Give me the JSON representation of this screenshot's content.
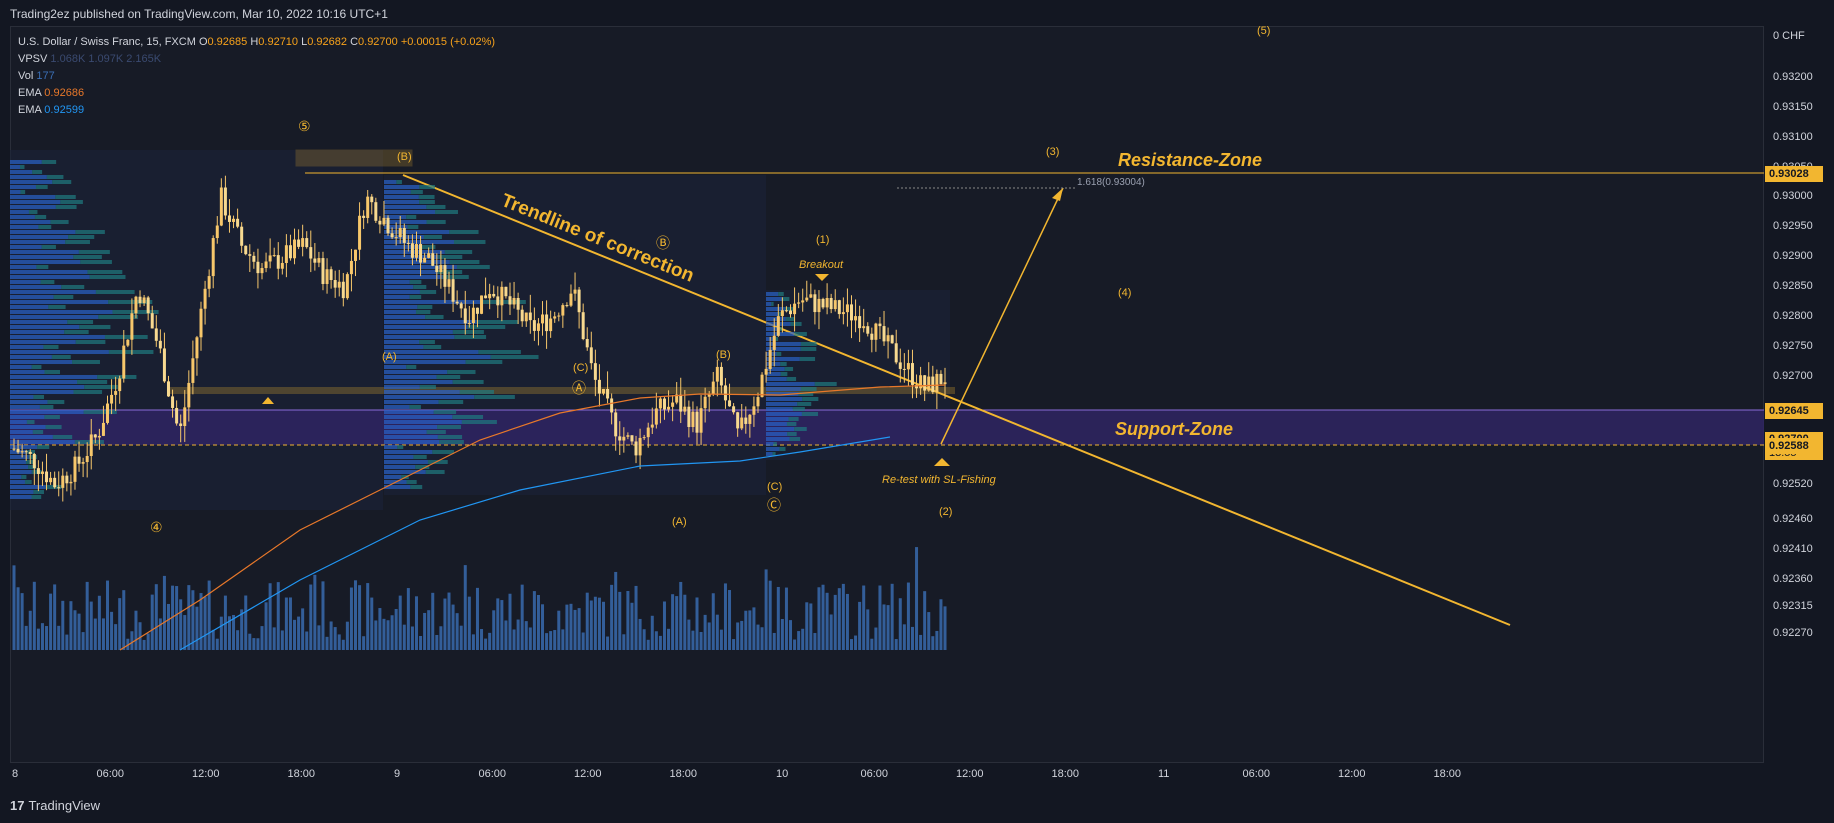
{
  "header": {
    "published": "Trading2ez published on TradingView.com, Mar 10, 2022 10:16 UTC+1"
  },
  "legend": {
    "symbol": "U.S. Dollar / Swiss Franc, 15, FXCM",
    "o_label": "O",
    "o_value": "0.92685",
    "h_label": "H",
    "h_value": "0.92710",
    "l_label": "L",
    "l_value": "0.92682",
    "c_label": "C",
    "c_value": "0.92700",
    "change": "+0.00015 (+0.02%)",
    "vpsv_label": "VPSV",
    "vpsv_values": "1.068K  1.097K  2.165K",
    "vol_label": "Vol",
    "vol_value": "177",
    "ema1_label": "EMA",
    "ema1_value": "0.92686",
    "ema2_label": "EMA",
    "ema2_value": "0.92599"
  },
  "colors": {
    "background": "#131722",
    "candle": "#f7c76b",
    "trendline": "#f2b630",
    "ema1": "#e8782a",
    "ema2": "#2196f3",
    "volume": "#3b6fb6",
    "support_zone": "#3b2d6e",
    "profile_blue": "#2962c9",
    "profile_teal": "#1f7a80"
  },
  "chart_data": {
    "type": "candlestick",
    "title": "U.S. Dollar / Swiss Franc, 15, FXCM",
    "currency": "CHF",
    "y_axis_top_label": "0 CHF",
    "ylim": [
      0.9225,
      0.9328
    ],
    "y_ticks": [
      "0.93200",
      "0.93150",
      "0.93100",
      "0.93050",
      "0.93000",
      "0.92950",
      "0.92900",
      "0.92850",
      "0.92800",
      "0.92750",
      "0.92700",
      "0.92645",
      "0.92588",
      "0.92520",
      "0.92460",
      "0.92410",
      "0.92360",
      "0.92315",
      "0.92270"
    ],
    "x_ticks": [
      "8",
      "06:00",
      "12:00",
      "18:00",
      "9",
      "06:00",
      "12:00",
      "18:00",
      "10",
      "06:00",
      "12:00",
      "18:00",
      "11",
      "06:00",
      "12:00",
      "18:00"
    ],
    "price_labels": {
      "resistance": "0.93028",
      "current": "0.92700",
      "current_timer": "13:55",
      "support_top": "0.92645",
      "support_bottom": "0.92588"
    },
    "series": [
      {
        "name": "EMA",
        "value": "0.92686"
      },
      {
        "name": "EMA",
        "value": "0.92599"
      }
    ],
    "close_path": [
      [
        0,
        0.9258
      ],
      [
        1,
        0.9256
      ],
      [
        2,
        0.9252
      ],
      [
        3,
        0.9255
      ],
      [
        4,
        0.926
      ],
      [
        5,
        0.927
      ],
      [
        6,
        0.9285
      ],
      [
        7,
        0.9275
      ],
      [
        8,
        0.926
      ],
      [
        9,
        0.928
      ],
      [
        10,
        0.93
      ],
      [
        11,
        0.9292
      ],
      [
        12,
        0.9288
      ],
      [
        13,
        0.929
      ],
      [
        14,
        0.9292
      ],
      [
        15,
        0.9287
      ],
      [
        16,
        0.9285
      ],
      [
        17,
        0.93
      ],
      [
        18,
        0.9296
      ],
      [
        19,
        0.9292
      ],
      [
        20,
        0.929
      ],
      [
        21,
        0.9285
      ],
      [
        22,
        0.928
      ],
      [
        23,
        0.9285
      ],
      [
        24,
        0.9282
      ],
      [
        25,
        0.9278
      ],
      [
        26,
        0.928
      ],
      [
        27,
        0.9285
      ],
      [
        28,
        0.927
      ],
      [
        29,
        0.9262
      ],
      [
        30,
        0.9258
      ],
      [
        31,
        0.9264
      ],
      [
        32,
        0.9266
      ],
      [
        33,
        0.9262
      ],
      [
        34,
        0.927
      ],
      [
        35,
        0.926
      ],
      [
        36,
        0.9268
      ],
      [
        37,
        0.928
      ],
      [
        38,
        0.9283
      ],
      [
        39,
        0.9282
      ],
      [
        40,
        0.9281
      ],
      [
        41,
        0.928
      ],
      [
        42,
        0.9276
      ],
      [
        43,
        0.9272
      ],
      [
        44,
        0.9268
      ],
      [
        45,
        0.927
      ]
    ],
    "annotations": {
      "trendline_label": "Trendline of correction",
      "resistance_label": "Resistance-Zone",
      "support_label": "Support-Zone",
      "breakout_label": "Breakout",
      "retest_label": "Re-test with SL-Fishing",
      "fib_label": "1.618(0.93004)",
      "waves": [
        "⑤",
        "④",
        "(B)",
        "(A)",
        "(C)",
        "Ⓐ",
        "Ⓑ",
        "Ⓒ",
        "(A)",
        "(B)",
        "(C)",
        "(1)",
        "(2)",
        "(3)",
        "(4)",
        "(5)"
      ]
    }
  },
  "footer": {
    "brand": "TradingView",
    "logo": "17"
  }
}
